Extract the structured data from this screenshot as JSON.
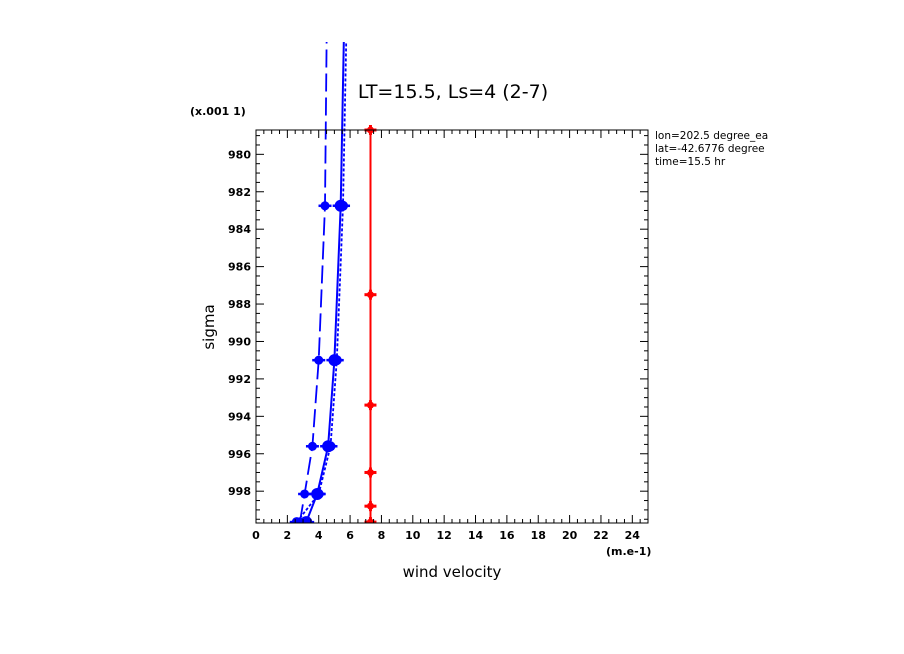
{
  "chart_data": {
    "type": "line",
    "title": "LT=15.5, Ls=4 (2-7)",
    "xlabel": "wind velocity",
    "ylabel": "sigma",
    "x_unit": "(m.e-1)",
    "y_unit": "(x.001 1)",
    "xlim": [
      0,
      25
    ],
    "ylim": [
      999.7,
      978.7
    ],
    "x_ticks": [
      "0",
      "2",
      "4",
      "6",
      "8",
      "10",
      "12",
      "14",
      "16",
      "18",
      "20",
      "22",
      "24"
    ],
    "y_ticks": [
      "980",
      "982",
      "984",
      "986",
      "988",
      "990",
      "992",
      "994",
      "996",
      "998"
    ],
    "annotations": [
      "lon=202.5 degree_ea",
      "lat=-42.6776 degree",
      "time=15.5 hr"
    ],
    "series": [
      {
        "color": "#0000ff",
        "dash": "solid",
        "marker": "large-dot",
        "points": [
          {
            "x": 3.2,
            "y": 999.65
          },
          {
            "x": 3.9,
            "y": 998.15
          },
          {
            "x": 4.6,
            "y": 995.6
          },
          {
            "x": 5.0,
            "y": 991.0
          },
          {
            "x": 5.4,
            "y": 982.75
          },
          {
            "x": 5.6,
            "y": 974.0
          }
        ]
      },
      {
        "color": "#0000ff",
        "dash": "dotted",
        "marker": "dot",
        "points": [
          {
            "x": 2.6,
            "y": 999.65
          },
          {
            "x": 4.0,
            "y": 998.15
          },
          {
            "x": 4.75,
            "y": 995.6
          },
          {
            "x": 5.15,
            "y": 991.0
          },
          {
            "x": 5.55,
            "y": 982.75
          },
          {
            "x": 5.75,
            "y": 974.0
          }
        ]
      },
      {
        "color": "#0000ff",
        "dash": "long-dash",
        "marker": "small-dot",
        "points": [
          {
            "x": 2.8,
            "y": 999.65
          },
          {
            "x": 3.1,
            "y": 998.15
          },
          {
            "x": 3.6,
            "y": 995.6
          },
          {
            "x": 4.0,
            "y": 991.0
          },
          {
            "x": 4.4,
            "y": 982.75
          },
          {
            "x": 4.5,
            "y": 974.0
          }
        ]
      },
      {
        "color": "#ff0000",
        "dash": "solid",
        "marker": "cross",
        "points": [
          {
            "x": 7.3,
            "y": 999.65
          },
          {
            "x": 7.3,
            "y": 998.8
          },
          {
            "x": 7.3,
            "y": 997.0
          },
          {
            "x": 7.3,
            "y": 993.4
          },
          {
            "x": 7.3,
            "y": 987.5
          },
          {
            "x": 7.3,
            "y": 978.7
          }
        ]
      }
    ]
  }
}
